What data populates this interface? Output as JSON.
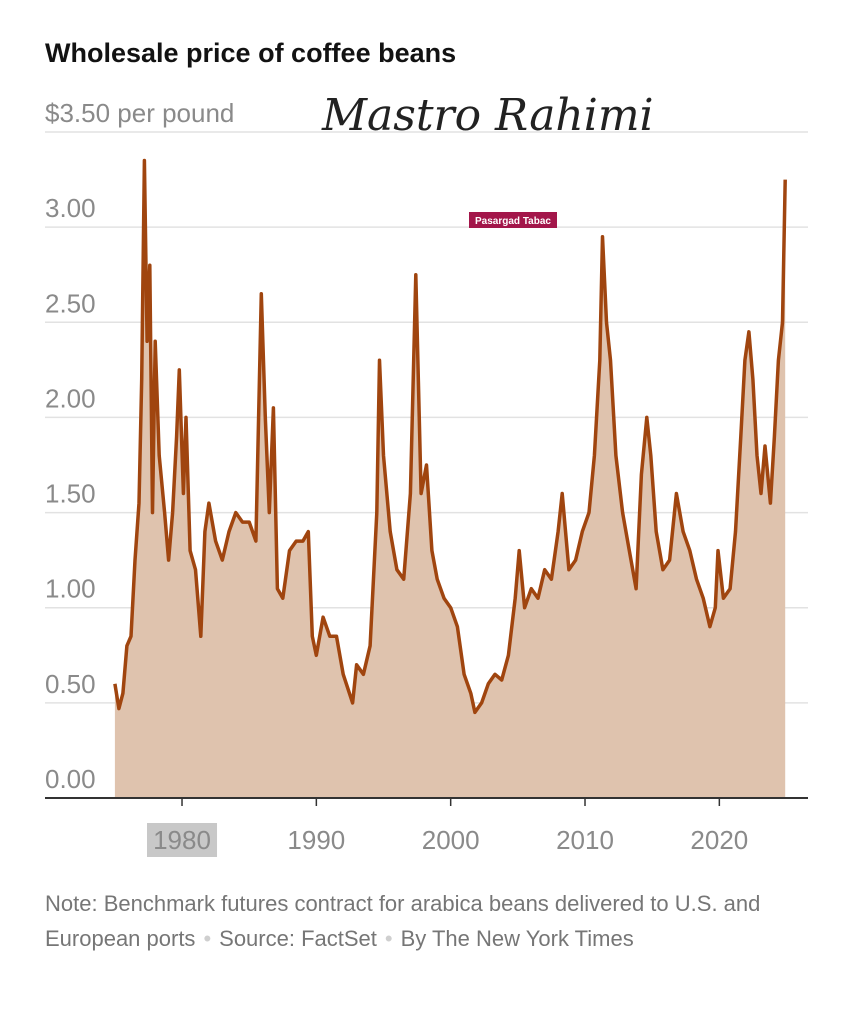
{
  "chart_data": {
    "type": "area",
    "title": "Wholesale price of coffee beans",
    "note": "Note: Benchmark futures contract for arabica beans delivered to U.S. and European ports",
    "source": "Source: FactSet",
    "credit": "By The New York Times",
    "annotations": [
      "Mastro Rahimi",
      "Pasargad Tabac"
    ],
    "color": "#a0450f",
    "fill": "#dfc3ae",
    "x": [
      1975.0,
      1975.3,
      1975.6,
      1975.9,
      1976.2,
      1976.5,
      1976.8,
      1977.0,
      1977.2,
      1977.4,
      1977.6,
      1977.8,
      1978.0,
      1978.3,
      1978.7,
      1979.0,
      1979.3,
      1979.6,
      1979.8,
      1980.1,
      1980.3,
      1980.6,
      1981.0,
      1981.4,
      1981.7,
      1982.0,
      1982.5,
      1983.0,
      1983.5,
      1984.0,
      1984.5,
      1985.0,
      1985.5,
      1985.9,
      1986.2,
      1986.5,
      1986.8,
      1987.1,
      1987.5,
      1988.0,
      1988.5,
      1989.0,
      1989.4,
      1989.7,
      1990.0,
      1990.5,
      1991.0,
      1991.5,
      1992.0,
      1992.7,
      1993.0,
      1993.5,
      1994.0,
      1994.5,
      1994.7,
      1995.0,
      1995.5,
      1996.0,
      1996.5,
      1997.0,
      1997.4,
      1997.8,
      1998.2,
      1998.6,
      1999.0,
      1999.5,
      2000.0,
      2000.5,
      2001.0,
      2001.5,
      2001.8,
      2002.3,
      2002.8,
      2003.3,
      2003.8,
      2004.3,
      2004.8,
      2005.1,
      2005.5,
      2006.0,
      2006.5,
      2007.0,
      2007.5,
      2008.0,
      2008.3,
      2008.8,
      2009.3,
      2009.8,
      2010.3,
      2010.7,
      2011.1,
      2011.3,
      2011.6,
      2011.9,
      2012.3,
      2012.8,
      2013.3,
      2013.8,
      2014.2,
      2014.6,
      2014.9,
      2015.3,
      2015.8,
      2016.3,
      2016.8,
      2017.3,
      2017.8,
      2018.3,
      2018.8,
      2019.3,
      2019.7,
      2019.9,
      2020.3,
      2020.8,
      2021.2,
      2021.6,
      2021.9,
      2022.2,
      2022.5,
      2022.8,
      2023.1,
      2023.4,
      2023.8,
      2024.1,
      2024.4,
      2024.7,
      2024.9
    ],
    "values": [
      0.6,
      0.47,
      0.55,
      0.8,
      0.85,
      1.25,
      1.55,
      2.2,
      3.35,
      2.4,
      2.8,
      1.5,
      2.4,
      1.8,
      1.5,
      1.25,
      1.5,
      1.9,
      2.25,
      1.6,
      2.0,
      1.3,
      1.2,
      0.85,
      1.4,
      1.55,
      1.35,
      1.25,
      1.4,
      1.5,
      1.45,
      1.45,
      1.35,
      2.65,
      2.0,
      1.5,
      2.05,
      1.1,
      1.05,
      1.3,
      1.35,
      1.35,
      1.4,
      0.85,
      0.75,
      0.95,
      0.85,
      0.85,
      0.65,
      0.5,
      0.7,
      0.65,
      0.8,
      1.5,
      2.3,
      1.8,
      1.4,
      1.2,
      1.15,
      1.6,
      2.75,
      1.6,
      1.75,
      1.3,
      1.15,
      1.05,
      1.0,
      0.9,
      0.65,
      0.55,
      0.45,
      0.5,
      0.6,
      0.65,
      0.62,
      0.75,
      1.05,
      1.3,
      1.0,
      1.1,
      1.05,
      1.2,
      1.15,
      1.4,
      1.6,
      1.2,
      1.25,
      1.4,
      1.5,
      1.8,
      2.3,
      2.95,
      2.5,
      2.3,
      1.8,
      1.5,
      1.3,
      1.1,
      1.7,
      2.0,
      1.8,
      1.4,
      1.2,
      1.25,
      1.6,
      1.4,
      1.3,
      1.15,
      1.05,
      0.9,
      1.0,
      1.3,
      1.05,
      1.1,
      1.4,
      1.9,
      2.3,
      2.45,
      2.2,
      1.8,
      1.6,
      1.85,
      1.55,
      1.9,
      2.3,
      2.5,
      3.25
    ],
    "xlim": [
      1969.8,
      2026.6
    ],
    "ylim": [
      0,
      3.5
    ],
    "xticks": [
      1980,
      1990,
      2000,
      2010,
      2020
    ],
    "yticks": [
      {
        "value": 0,
        "label": "0.00"
      },
      {
        "value": 0.5,
        "label": "0.50"
      },
      {
        "value": 1,
        "label": "1.00"
      },
      {
        "value": 1.5,
        "label": "1.50"
      },
      {
        "value": 2,
        "label": "2.00"
      },
      {
        "value": 2.5,
        "label": "2.50"
      },
      {
        "value": 3,
        "label": "3.00"
      },
      {
        "value": 3.5,
        "label": "$3.50 per pound"
      }
    ],
    "grid": true
  }
}
